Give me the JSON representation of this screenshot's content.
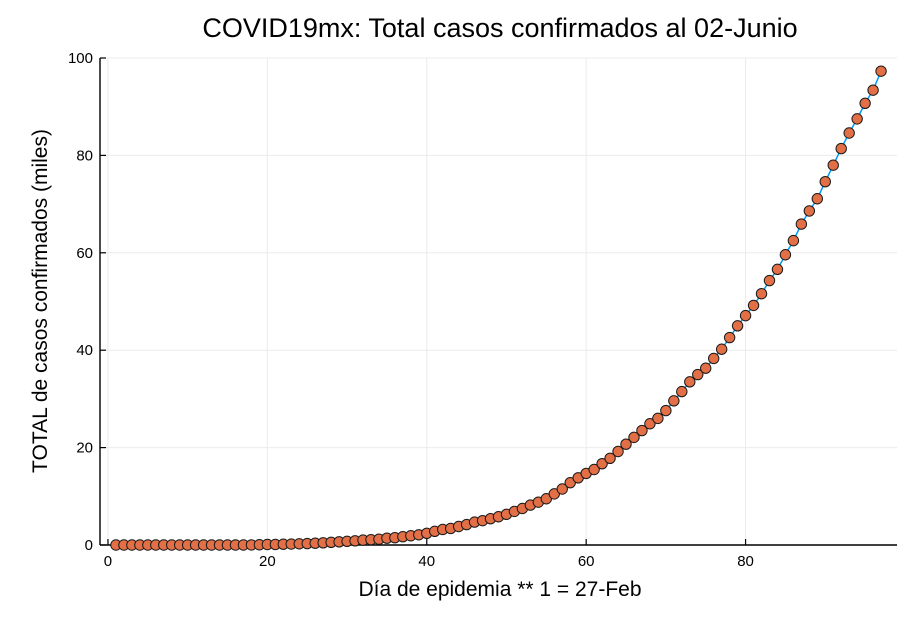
{
  "chart_data": {
    "type": "scatter",
    "title": "COVID19mx: Total casos confirmados al 02-Junio",
    "xlabel": "Día de epidemia ** 1 = 27-Feb",
    "ylabel": "TOTAL de casos confirmados (miles)",
    "xlim": [
      -1,
      99
    ],
    "ylim": [
      0,
      100
    ],
    "xticks": [
      0,
      20,
      40,
      60,
      80
    ],
    "yticks": [
      0,
      20,
      40,
      60,
      80,
      100
    ],
    "grid": true,
    "legend": "none",
    "line_color": "#009af9",
    "marker_color": "#e26f46",
    "series": [
      {
        "x": [
          1,
          2,
          3,
          4,
          5,
          6,
          7,
          8,
          9,
          10,
          11,
          12,
          13,
          14,
          15,
          16,
          17,
          18,
          19,
          20,
          21,
          22,
          23,
          24,
          25,
          26,
          27,
          28,
          29,
          30,
          31,
          32,
          33,
          34,
          35,
          36,
          37,
          38,
          39,
          40,
          41,
          42,
          43,
          44,
          45,
          46,
          47,
          48,
          49,
          50,
          51,
          52,
          53,
          54,
          55,
          56,
          57,
          58,
          59,
          60,
          61,
          62,
          63,
          64,
          65,
          66,
          67,
          68,
          69,
          70,
          71,
          72,
          73,
          74,
          75,
          76,
          77,
          78,
          79,
          80,
          81,
          82,
          83,
          84,
          85,
          86,
          87,
          88,
          89,
          90,
          91,
          92,
          93,
          94,
          95,
          96,
          97
        ],
        "y": [
          0.0,
          0.0,
          0.0,
          0.0,
          0.0,
          0.0,
          0.0,
          0.0,
          0.0,
          0.0,
          0.0,
          0.0,
          0.0,
          0.0,
          0.0,
          0.0,
          0.0,
          0.02,
          0.05,
          0.1,
          0.12,
          0.16,
          0.2,
          0.25,
          0.3,
          0.37,
          0.45,
          0.55,
          0.65,
          0.75,
          0.85,
          1.0,
          1.1,
          1.2,
          1.4,
          1.5,
          1.7,
          1.9,
          2.1,
          2.4,
          2.8,
          3.2,
          3.4,
          3.8,
          4.2,
          4.7,
          5.0,
          5.4,
          5.8,
          6.3,
          6.9,
          7.5,
          8.2,
          8.8,
          9.5,
          10.5,
          11.5,
          12.8,
          13.8,
          14.7,
          15.5,
          16.7,
          17.8,
          19.2,
          20.7,
          22.1,
          23.5,
          24.9,
          26.0,
          27.6,
          29.6,
          31.5,
          33.5,
          35.0,
          36.3,
          38.3,
          40.2,
          42.6,
          45.0,
          47.1,
          49.2,
          51.6,
          54.3,
          56.6,
          59.6,
          62.5,
          65.9,
          68.6,
          71.1,
          74.6,
          78.0,
          81.4,
          84.6,
          87.5,
          90.7,
          93.4,
          97.3
        ]
      }
    ]
  }
}
